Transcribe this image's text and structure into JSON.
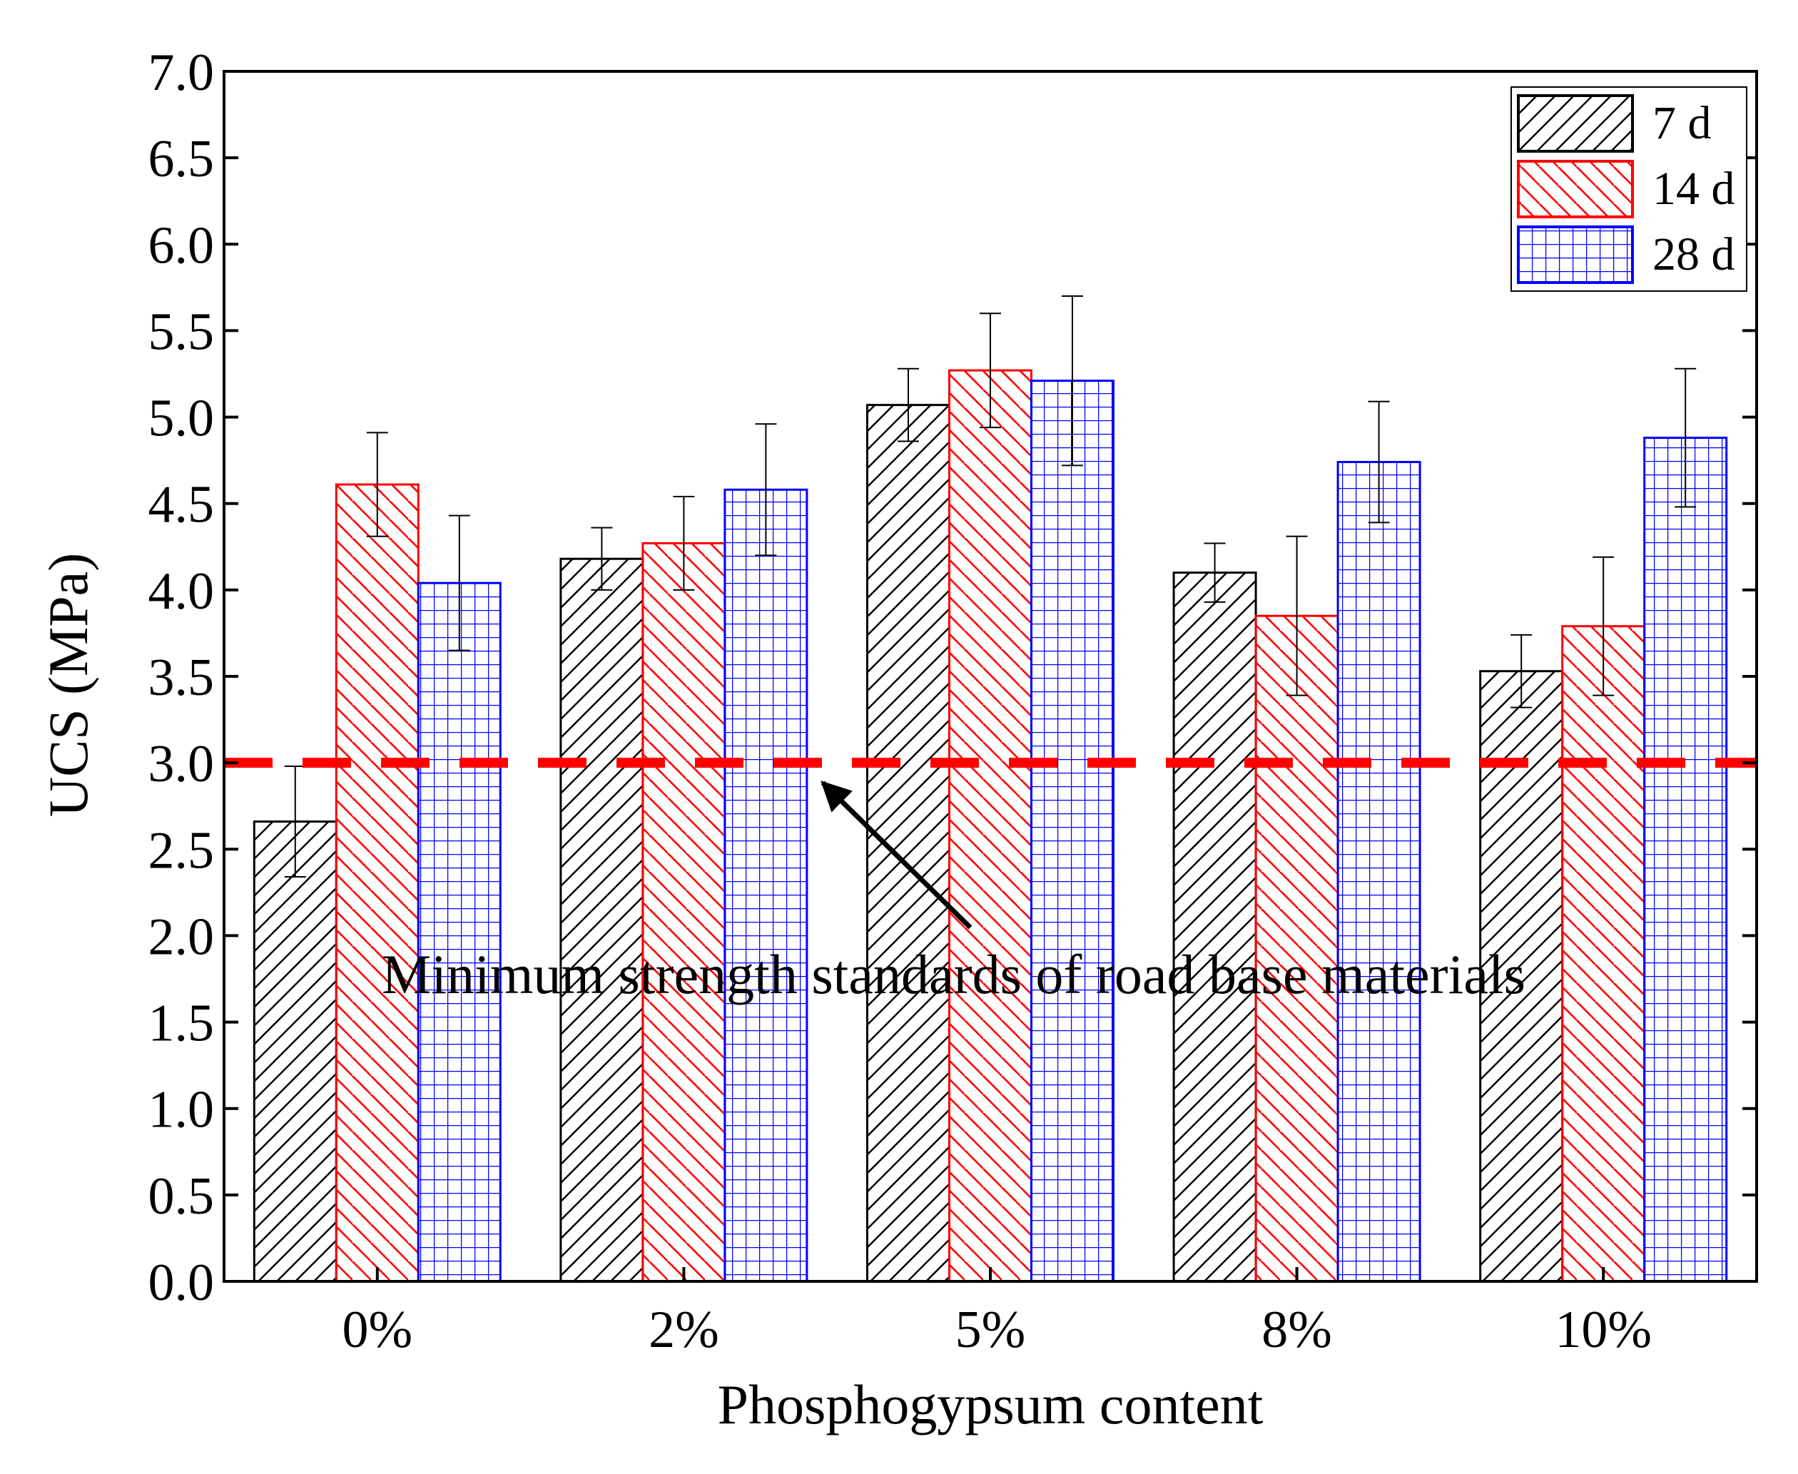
{
  "chart_data": {
    "type": "bar",
    "title": "",
    "xlabel": "Phosphogypsum content",
    "ylabel": "UCS (MPa)",
    "categories": [
      "0%",
      "2%",
      "5%",
      "8%",
      "10%"
    ],
    "ylim": [
      0,
      7.0
    ],
    "yticks": [
      "0.0",
      "0.5",
      "1.0",
      "1.5",
      "2.0",
      "2.5",
      "3.0",
      "3.5",
      "4.0",
      "4.5",
      "5.0",
      "5.5",
      "6.0",
      "6.5",
      "7.0"
    ],
    "grid": false,
    "legend_position": "top-right",
    "series": [
      {
        "name": "7 d",
        "color": "#000000",
        "pattern": "forward-hatch",
        "values": [
          2.66,
          4.18,
          5.07,
          4.1,
          3.53
        ],
        "errors": [
          0.32,
          0.18,
          0.21,
          0.17,
          0.21
        ]
      },
      {
        "name": "14 d",
        "color": "#ff0000",
        "pattern": "back-hatch",
        "values": [
          4.61,
          4.27,
          5.27,
          3.85,
          3.79
        ],
        "errors": [
          0.3,
          0.27,
          0.33,
          0.46,
          0.4
        ]
      },
      {
        "name": "28 d",
        "color": "#0000ff",
        "pattern": "grid",
        "values": [
          4.04,
          4.58,
          5.21,
          4.74,
          4.88
        ],
        "errors": [
          0.39,
          0.38,
          0.49,
          0.35,
          0.4
        ]
      }
    ],
    "reference_line": {
      "value": 3.0,
      "color": "#ff0000",
      "style": "dashed"
    },
    "annotation": {
      "text": "Minimum strength standards of road base materials",
      "arrow_target": {
        "category_index": 2,
        "value": 3.0
      }
    }
  }
}
